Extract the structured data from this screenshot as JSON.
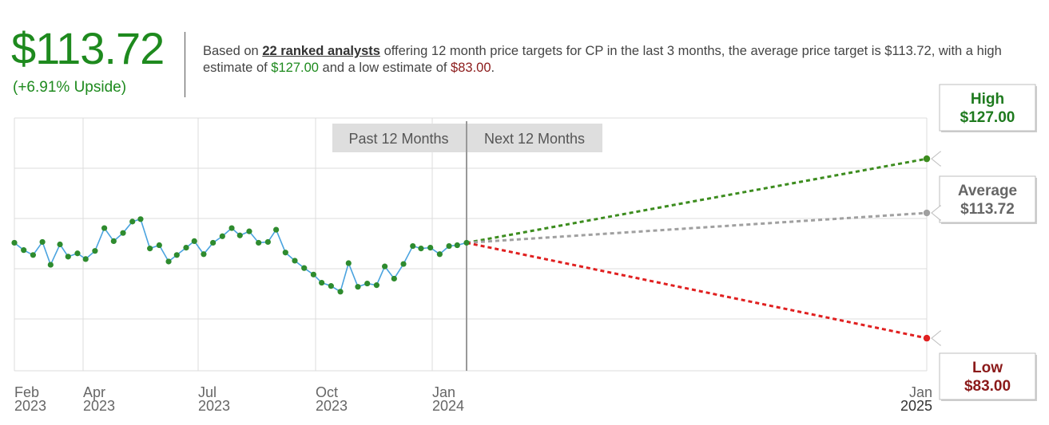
{
  "header": {
    "price": "$113.72",
    "upside": "(+6.91% Upside)",
    "desc_pre": "Based on ",
    "desc_analysts": "22 ranked analysts",
    "desc_mid": " offering 12 month price targets for CP in the last 3 months, the average price target is $113.72, with a high estimate of ",
    "desc_high": "$127.00",
    "desc_and": " and a low estimate of ",
    "desc_low": "$83.00",
    "desc_end": "."
  },
  "chart_data": {
    "type": "line",
    "title": "",
    "xlabel": "",
    "ylabel": "",
    "period_labels": [
      "Past 12 Months",
      "Next 12 Months"
    ],
    "x_ticks": [
      {
        "month": "Feb",
        "year": "2023",
        "date": "2023-02-01"
      },
      {
        "month": "Apr",
        "year": "2023",
        "date": "2023-04-01"
      },
      {
        "month": "Jul",
        "year": "2023",
        "date": "2023-07-01"
      },
      {
        "month": "Oct",
        "year": "2023",
        "date": "2023-10-01"
      },
      {
        "month": "Jan",
        "year": "2024",
        "date": "2024-01-01"
      },
      {
        "month": "Jan",
        "year": "2025",
        "date": "2025-01-01"
      }
    ],
    "ylim": [
      75,
      137
    ],
    "series": [
      {
        "type": "history",
        "color": "#4aa3df",
        "dot_color": "#2e8b2e",
        "points": [
          [
            "2023-02-01",
            106.4
          ],
          [
            "2023-02-09",
            104.6
          ],
          [
            "2023-02-17",
            103.4
          ],
          [
            "2023-02-25",
            106.6
          ],
          [
            "2023-03-04",
            101.0
          ],
          [
            "2023-03-12",
            106.0
          ],
          [
            "2023-03-19",
            103.0
          ],
          [
            "2023-03-27",
            103.8
          ],
          [
            "2023-04-03",
            102.4
          ],
          [
            "2023-04-11",
            104.4
          ],
          [
            "2023-04-19",
            110.0
          ],
          [
            "2023-04-27",
            106.8
          ],
          [
            "2023-05-05",
            108.8
          ],
          [
            "2023-05-13",
            111.6
          ],
          [
            "2023-05-20",
            112.2
          ],
          [
            "2023-05-28",
            105.0
          ],
          [
            "2023-06-05",
            105.8
          ],
          [
            "2023-06-13",
            101.8
          ],
          [
            "2023-06-20",
            103.4
          ],
          [
            "2023-06-28",
            105.2
          ],
          [
            "2023-07-05",
            106.8
          ],
          [
            "2023-07-13",
            103.6
          ],
          [
            "2023-07-21",
            106.4
          ],
          [
            "2023-07-29",
            108.0
          ],
          [
            "2023-08-06",
            110.0
          ],
          [
            "2023-08-13",
            108.2
          ],
          [
            "2023-08-21",
            109.2
          ],
          [
            "2023-08-29",
            106.4
          ],
          [
            "2023-09-06",
            106.6
          ],
          [
            "2023-09-13",
            109.6
          ],
          [
            "2023-09-21",
            104.0
          ],
          [
            "2023-09-29",
            102.0
          ],
          [
            "2023-10-07",
            100.2
          ],
          [
            "2023-10-15",
            98.6
          ],
          [
            "2023-10-22",
            96.6
          ],
          [
            "2023-10-30",
            95.8
          ],
          [
            "2023-11-07",
            94.4
          ],
          [
            "2023-11-14",
            101.4
          ],
          [
            "2023-11-22",
            95.6
          ],
          [
            "2023-11-30",
            96.4
          ],
          [
            "2023-12-08",
            96.0
          ],
          [
            "2023-12-15",
            100.6
          ],
          [
            "2023-12-23",
            97.6
          ],
          [
            "2023-12-31",
            101.2
          ],
          [
            "2024-01-08",
            105.6
          ],
          [
            "2024-01-15",
            105.0
          ],
          [
            "2024-01-23",
            105.2
          ],
          [
            "2024-01-31",
            103.6
          ],
          [
            "2024-02-08",
            105.6
          ],
          [
            "2024-02-15",
            105.8
          ],
          [
            "2024-02-23",
            106.4
          ]
        ]
      },
      {
        "name": "High",
        "value": 127.0,
        "label": "$127.00",
        "color": "#3c8c1e",
        "text_color": "#1e7a1e"
      },
      {
        "name": "Average",
        "value": 113.72,
        "label": "$113.72",
        "color": "#a0a0a0",
        "text_color": "#666666"
      },
      {
        "name": "Low",
        "value": 83.0,
        "label": "$83.00",
        "color": "#e02020",
        "text_color": "#8b1a1a"
      }
    ],
    "forecast_start": [
      "2024-02-23",
      106.4
    ],
    "forecast_end_date": "2025-01-01",
    "grid": true
  }
}
